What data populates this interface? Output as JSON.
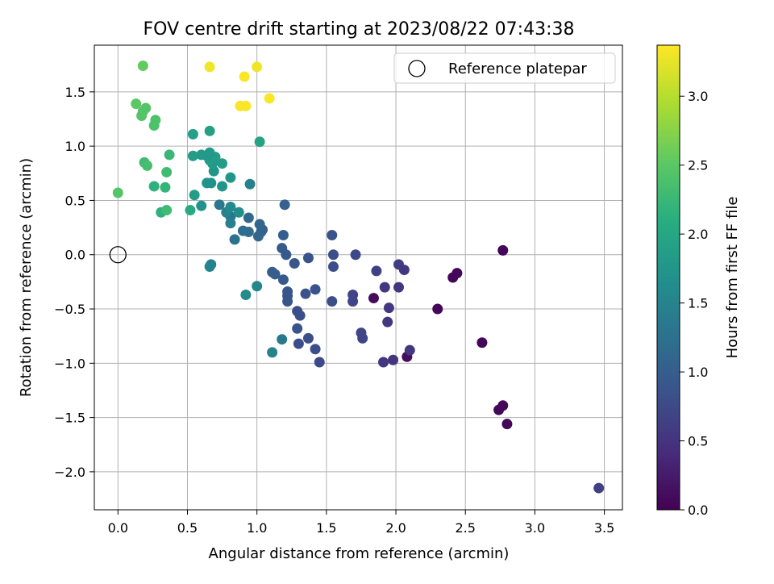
{
  "chart_data": {
    "type": "scatter",
    "title": "FOV centre drift starting at 2023/08/22 07:43:38",
    "xlabel": "Angular distance from reference (arcmin)",
    "ylabel": "Rotation from reference (arcmin)",
    "xlim": [
      -0.17,
      3.63
    ],
    "ylim": [
      -2.35,
      1.93
    ],
    "xticks": [
      0.0,
      0.5,
      1.0,
      1.5,
      2.0,
      2.5,
      3.0,
      3.5
    ],
    "xtick_labels": [
      "0.0",
      "0.5",
      "1.0",
      "1.5",
      "2.0",
      "2.5",
      "3.0",
      "3.5"
    ],
    "yticks": [
      -2.0,
      -1.5,
      -1.0,
      -0.5,
      0.0,
      0.5,
      1.0,
      1.5
    ],
    "ytick_labels": [
      "−2.0",
      "−1.5",
      "−1.0",
      "−0.5",
      "0.0",
      "0.5",
      "1.0",
      "1.5"
    ],
    "grid": true,
    "colormap": "viridis",
    "legend": {
      "position": "top-right",
      "entries": [
        {
          "label": "Reference platepar",
          "marker": "open-circle"
        }
      ]
    },
    "reference_point": {
      "x": 0.0,
      "y": 0.0
    },
    "colorbar": {
      "label": "Hours from first FF file",
      "range": [
        0.0,
        3.37
      ],
      "ticks": [
        0.0,
        0.5,
        1.0,
        1.5,
        2.0,
        2.5,
        3.0
      ],
      "tick_labels": [
        "0.0",
        "0.5",
        "1.0",
        "1.5",
        "2.0",
        "2.5",
        "3.0"
      ]
    },
    "points": [
      {
        "x": 3.46,
        "y": -2.15,
        "c": 0.65
      },
      {
        "x": 2.8,
        "y": -1.56,
        "c": 0.05
      },
      {
        "x": 2.77,
        "y": -1.39,
        "c": 0.05
      },
      {
        "x": 2.74,
        "y": -1.43,
        "c": 0.05
      },
      {
        "x": 2.62,
        "y": -0.81,
        "c": 0.05
      },
      {
        "x": 2.77,
        "y": 0.04,
        "c": 0.05
      },
      {
        "x": 2.44,
        "y": -0.17,
        "c": 0.05
      },
      {
        "x": 2.41,
        "y": -0.21,
        "c": 0.05
      },
      {
        "x": 2.3,
        "y": -0.5,
        "c": 0.05
      },
      {
        "x": 2.08,
        "y": -0.94,
        "c": 0.1
      },
      {
        "x": 1.84,
        "y": -0.4,
        "c": 0.1
      },
      {
        "x": 2.1,
        "y": -0.88,
        "c": 0.55
      },
      {
        "x": 1.98,
        "y": -0.97,
        "c": 0.5
      },
      {
        "x": 1.91,
        "y": -0.99,
        "c": 0.55
      },
      {
        "x": 1.94,
        "y": -0.62,
        "c": 0.55
      },
      {
        "x": 1.95,
        "y": -0.49,
        "c": 0.55
      },
      {
        "x": 1.92,
        "y": -0.3,
        "c": 0.55
      },
      {
        "x": 2.02,
        "y": -0.3,
        "c": 0.55
      },
      {
        "x": 2.02,
        "y": -0.09,
        "c": 0.6
      },
      {
        "x": 2.06,
        "y": -0.14,
        "c": 0.55
      },
      {
        "x": 1.86,
        "y": -0.15,
        "c": 0.65
      },
      {
        "x": 1.76,
        "y": -0.77,
        "c": 0.7
      },
      {
        "x": 1.75,
        "y": -0.72,
        "c": 0.7
      },
      {
        "x": 1.69,
        "y": -0.43,
        "c": 0.7
      },
      {
        "x": 1.69,
        "y": -0.37,
        "c": 0.7
      },
      {
        "x": 1.71,
        "y": 0.0,
        "c": 0.75
      },
      {
        "x": 1.55,
        "y": 0.0,
        "c": 0.8
      },
      {
        "x": 1.55,
        "y": -0.11,
        "c": 0.8
      },
      {
        "x": 1.54,
        "y": 0.18,
        "c": 0.85
      },
      {
        "x": 1.54,
        "y": -0.43,
        "c": 0.8
      },
      {
        "x": 1.45,
        "y": -0.99,
        "c": 0.75
      },
      {
        "x": 1.42,
        "y": -0.87,
        "c": 0.8
      },
      {
        "x": 1.37,
        "y": -0.77,
        "c": 0.8
      },
      {
        "x": 1.3,
        "y": -0.82,
        "c": 0.8
      },
      {
        "x": 1.29,
        "y": -0.68,
        "c": 0.85
      },
      {
        "x": 1.31,
        "y": -0.56,
        "c": 0.8
      },
      {
        "x": 1.29,
        "y": -0.52,
        "c": 0.8
      },
      {
        "x": 1.42,
        "y": -0.32,
        "c": 0.85
      },
      {
        "x": 1.35,
        "y": -0.36,
        "c": 0.85
      },
      {
        "x": 1.37,
        "y": -0.03,
        "c": 0.85
      },
      {
        "x": 1.27,
        "y": -0.08,
        "c": 0.9
      },
      {
        "x": 1.22,
        "y": -0.43,
        "c": 0.9
      },
      {
        "x": 1.22,
        "y": -0.38,
        "c": 0.9
      },
      {
        "x": 1.22,
        "y": -0.34,
        "c": 0.9
      },
      {
        "x": 1.19,
        "y": -0.23,
        "c": 0.95
      },
      {
        "x": 1.18,
        "y": 0.06,
        "c": 0.95
      },
      {
        "x": 1.21,
        "y": 0.0,
        "c": 0.95
      },
      {
        "x": 1.19,
        "y": 0.18,
        "c": 1.0
      },
      {
        "x": 1.2,
        "y": 0.46,
        "c": 1.05
      },
      {
        "x": 1.13,
        "y": -0.18,
        "c": 1.0
      },
      {
        "x": 1.11,
        "y": -0.16,
        "c": 1.0
      },
      {
        "x": 1.18,
        "y": -0.78,
        "c": 1.35
      },
      {
        "x": 1.11,
        "y": -0.9,
        "c": 1.5
      },
      {
        "x": 1.0,
        "y": -0.29,
        "c": 1.55
      },
      {
        "x": 0.92,
        "y": -0.37,
        "c": 1.6
      },
      {
        "x": 1.03,
        "y": 0.21,
        "c": 1.05
      },
      {
        "x": 1.04,
        "y": 0.23,
        "c": 1.05
      },
      {
        "x": 1.01,
        "y": 0.17,
        "c": 1.1
      },
      {
        "x": 1.02,
        "y": 0.28,
        "c": 1.1
      },
      {
        "x": 0.94,
        "y": 0.34,
        "c": 1.15
      },
      {
        "x": 0.9,
        "y": 0.22,
        "c": 1.2
      },
      {
        "x": 0.94,
        "y": 0.21,
        "c": 1.2
      },
      {
        "x": 0.84,
        "y": 0.14,
        "c": 1.25
      },
      {
        "x": 0.81,
        "y": 0.35,
        "c": 1.3
      },
      {
        "x": 0.81,
        "y": 0.29,
        "c": 1.45
      },
      {
        "x": 0.78,
        "y": 0.39,
        "c": 1.5
      },
      {
        "x": 0.73,
        "y": 0.46,
        "c": 1.35
      },
      {
        "x": 0.81,
        "y": 0.44,
        "c": 1.6
      },
      {
        "x": 0.87,
        "y": 0.39,
        "c": 1.65
      },
      {
        "x": 0.95,
        "y": 0.65,
        "c": 1.45
      },
      {
        "x": 0.81,
        "y": 0.71,
        "c": 1.75
      },
      {
        "x": 0.75,
        "y": 0.63,
        "c": 1.75
      },
      {
        "x": 0.64,
        "y": 0.66,
        "c": 1.75
      },
      {
        "x": 0.67,
        "y": 0.66,
        "c": 1.7
      },
      {
        "x": 0.6,
        "y": 0.45,
        "c": 1.7
      },
      {
        "x": 0.55,
        "y": 0.55,
        "c": 1.85
      },
      {
        "x": 0.52,
        "y": 0.41,
        "c": 2.05
      },
      {
        "x": 0.69,
        "y": 0.77,
        "c": 1.75
      },
      {
        "x": 0.68,
        "y": 0.84,
        "c": 1.8
      },
      {
        "x": 0.66,
        "y": 0.87,
        "c": 1.85
      },
      {
        "x": 0.75,
        "y": 0.84,
        "c": 1.85
      },
      {
        "x": 0.7,
        "y": 0.9,
        "c": 1.85
      },
      {
        "x": 0.66,
        "y": 0.94,
        "c": 1.8
      },
      {
        "x": 0.64,
        "y": 0.91,
        "c": 1.8
      },
      {
        "x": 0.6,
        "y": 0.92,
        "c": 1.8
      },
      {
        "x": 0.54,
        "y": 0.91,
        "c": 1.85
      },
      {
        "x": 0.54,
        "y": 1.11,
        "c": 1.9
      },
      {
        "x": 0.66,
        "y": 1.14,
        "c": 1.9
      },
      {
        "x": 0.67,
        "y": -0.09,
        "c": 1.5
      },
      {
        "x": 0.66,
        "y": -0.11,
        "c": 1.5
      },
      {
        "x": 1.02,
        "y": 1.04,
        "c": 1.95
      },
      {
        "x": 0.37,
        "y": 0.92,
        "c": 2.25
      },
      {
        "x": 0.35,
        "y": 0.76,
        "c": 2.3
      },
      {
        "x": 0.34,
        "y": 0.62,
        "c": 2.2
      },
      {
        "x": 0.26,
        "y": 0.63,
        "c": 2.15
      },
      {
        "x": 0.31,
        "y": 0.39,
        "c": 2.15
      },
      {
        "x": 0.35,
        "y": 0.41,
        "c": 2.3
      },
      {
        "x": 0.19,
        "y": 0.85,
        "c": 2.3
      },
      {
        "x": 0.21,
        "y": 0.82,
        "c": 2.35
      },
      {
        "x": 0.0,
        "y": 0.57,
        "c": 2.45
      },
      {
        "x": 0.26,
        "y": 1.19,
        "c": 2.4
      },
      {
        "x": 0.27,
        "y": 1.24,
        "c": 2.4
      },
      {
        "x": 0.17,
        "y": 1.28,
        "c": 2.45
      },
      {
        "x": 0.18,
        "y": 1.32,
        "c": 2.45
      },
      {
        "x": 0.2,
        "y": 1.35,
        "c": 2.45
      },
      {
        "x": 0.13,
        "y": 1.39,
        "c": 2.5
      },
      {
        "x": 0.18,
        "y": 1.74,
        "c": 2.55
      },
      {
        "x": 0.66,
        "y": 1.73,
        "c": 3.3
      },
      {
        "x": 1.0,
        "y": 1.73,
        "c": 3.3
      },
      {
        "x": 0.91,
        "y": 1.64,
        "c": 3.35
      },
      {
        "x": 1.09,
        "y": 1.44,
        "c": 3.35
      },
      {
        "x": 0.88,
        "y": 1.37,
        "c": 3.35
      },
      {
        "x": 0.92,
        "y": 1.37,
        "c": 3.35
      }
    ]
  }
}
